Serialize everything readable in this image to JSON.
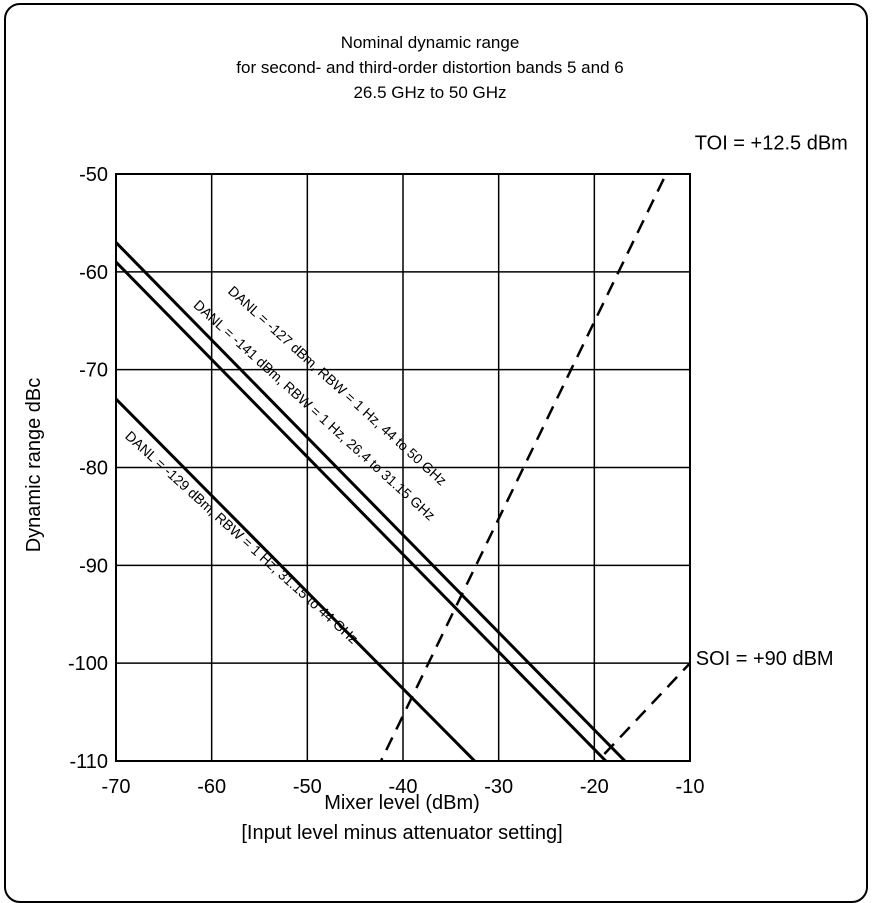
{
  "chart_data": {
    "type": "line",
    "title": [
      "Nominal dynamic range",
      "for second- and third-order distortion bands 5 and 6",
      "26.5 GHz to 50 GHz"
    ],
    "xlabel": "Mixer level (dBm)",
    "xlabel2": "[Input level minus attenuator setting]",
    "ylabel": "Dynamic range dBc",
    "xlim": [
      -70,
      -10
    ],
    "ylim": [
      -110,
      -50
    ],
    "xticks": [
      "-70",
      "-60",
      "-50",
      "-40",
      "-30",
      "-20",
      "-10"
    ],
    "yticks": [
      "-50",
      "-60",
      "-70",
      "-80",
      "-90",
      "-100",
      "-110"
    ],
    "grid": true,
    "series": [
      {
        "name": "DANL = -127 dBm, RBW = 1 Hz, 44 to 50 GHz",
        "style": "solid",
        "x": [
          -70,
          -15.8
        ],
        "y": [
          -57,
          -111
        ]
      },
      {
        "name": "DANL = -141 dBm, RBW = 1 Hz, 26.4 to 31.15 GHz",
        "style": "solid",
        "x": [
          -70,
          -17.8
        ],
        "y": [
          -59,
          -111
        ]
      },
      {
        "name": "DANL = -129 dBm, RBW = 1 Hz, 31.15 to 44 GHz",
        "style": "solid",
        "x": [
          -70,
          -31.5
        ],
        "y": [
          -73,
          -111
        ]
      },
      {
        "name": "TOI = +12.5 dBm",
        "style": "dashed",
        "x": [
          -42.8,
          -12.5
        ],
        "y": [
          -111,
          -50
        ]
      },
      {
        "name": "SOI =  +90 dBM",
        "style": "dashed",
        "x": [
          -20.6,
          -10
        ],
        "y": [
          -111,
          -100
        ]
      }
    ],
    "annotations": [
      {
        "text": "DANL = -127 dBm, RBW = 1 Hz, 44 to 50 GHz",
        "x": -47.2,
        "y": -72
      },
      {
        "text": "DANL = -141 dBm, RBW = 1 Hz, 26.4 to 31.15 GHz",
        "x": -49.6,
        "y": -74.5
      },
      {
        "text": "DANL = -129 dBm, RBW = 1 Hz, 31.15 to 44 GHz",
        "x": -57.2,
        "y": -87.5
      },
      {
        "text": "TOI = +12.5 dBm",
        "x": -9.5,
        "y": -47.5
      },
      {
        "text": "SOI =  +90 dBM",
        "x": -9.4,
        "y": -100.2
      }
    ]
  }
}
